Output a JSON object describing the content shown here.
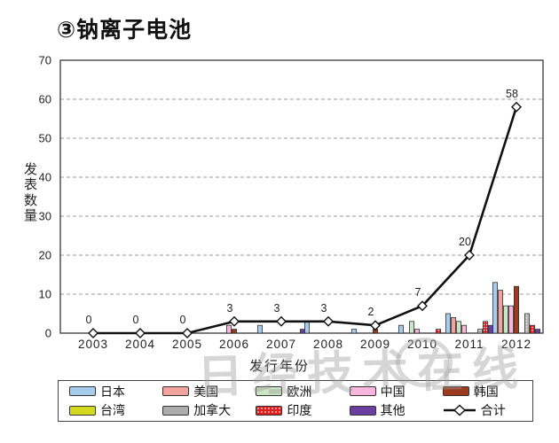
{
  "title": "③钠离子电池",
  "watermark": {
    "text": "日经技术在线"
  },
  "chart_data": {
    "type": "bar",
    "subtype": "grouped-bars-with-total-line",
    "title": "③钠离子电池",
    "xlabel": "发行年份",
    "ylabel": "发表数量",
    "categories": [
      "2003",
      "2004",
      "2005",
      "2006",
      "2007",
      "2008",
      "2009",
      "2010",
      "2011",
      "2012"
    ],
    "ylim": [
      0,
      70
    ],
    "yticks": [
      0,
      10,
      20,
      30,
      40,
      50,
      60,
      70
    ],
    "grid": "dashed-horizontal",
    "legend_position": "bottom",
    "series": [
      {
        "name": "日本",
        "type": "bar",
        "color": "#a8cceb",
        "values": [
          0,
          0,
          0,
          0,
          2,
          3,
          1,
          2,
          5,
          13
        ]
      },
      {
        "name": "美国",
        "type": "bar",
        "color": "#f2a39e",
        "values": [
          0,
          0,
          0,
          0,
          0,
          0,
          0,
          0,
          4,
          11
        ]
      },
      {
        "name": "欧洲",
        "type": "bar",
        "color": "#cbe6c3",
        "values": [
          0,
          0,
          0,
          0,
          0,
          0,
          0,
          3,
          3,
          7
        ]
      },
      {
        "name": "中国",
        "type": "bar",
        "color": "#f9b6dc",
        "values": [
          0,
          0,
          0,
          2,
          0,
          0,
          0,
          1,
          2,
          7
        ]
      },
      {
        "name": "韩国",
        "type": "bar",
        "color": "#9e3b1e",
        "values": [
          0,
          0,
          0,
          1,
          0,
          0,
          1,
          0,
          0,
          12
        ]
      },
      {
        "name": "台湾",
        "type": "bar",
        "color": "#d4db1f",
        "values": [
          0,
          0,
          0,
          0,
          0,
          0,
          0,
          0,
          0,
          0
        ]
      },
      {
        "name": "加拿大",
        "type": "bar",
        "color": "#acacac",
        "pattern": "gray-dots",
        "values": [
          0,
          0,
          0,
          0,
          0,
          0,
          0,
          0,
          1,
          5
        ]
      },
      {
        "name": "印度",
        "type": "bar",
        "color": "#dd1f1f",
        "pattern": "white-dots",
        "values": [
          0,
          0,
          0,
          0,
          0,
          0,
          0,
          1,
          3,
          2
        ]
      },
      {
        "name": "其他",
        "type": "bar",
        "color": "#6b3fa0",
        "values": [
          0,
          0,
          0,
          0,
          1,
          0,
          0,
          0,
          2,
          1
        ]
      },
      {
        "name": "合计",
        "type": "line",
        "color": "#111111",
        "marker": "white-diamond",
        "values": [
          0,
          0,
          0,
          3,
          3,
          3,
          2,
          7,
          20,
          58
        ],
        "show_value_labels": true
      }
    ]
  }
}
